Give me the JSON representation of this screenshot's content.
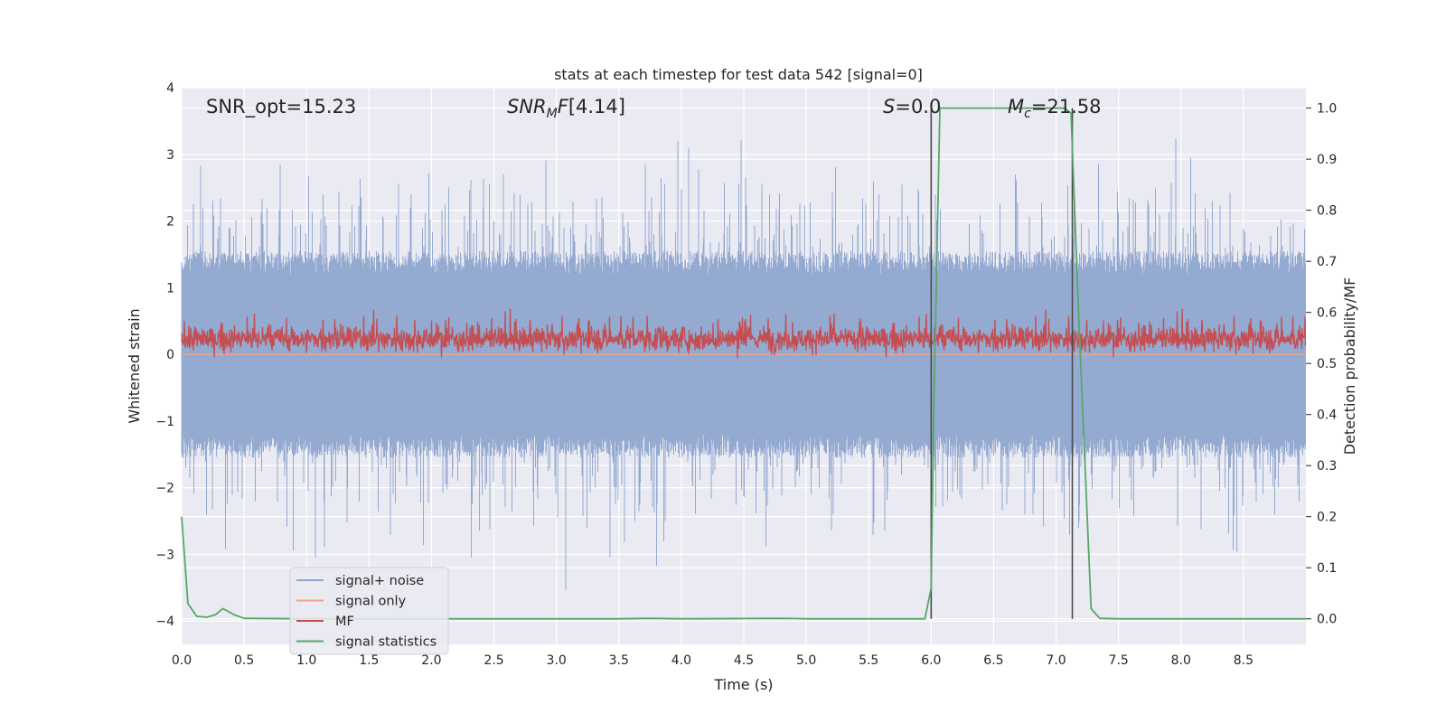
{
  "chart_data": {
    "type": "line",
    "title": "stats at each timestep for test data 542 [signal=0]",
    "xlabel": "Time (s)",
    "ylabel": "Whitened strain",
    "ylabel_right": "Detection probability/MF",
    "xlim": [
      0.0,
      9.0
    ],
    "ylim": [
      -4.35,
      4.0
    ],
    "ylim_right": [
      -0.05,
      1.04
    ],
    "x_ticks": [
      "0.0",
      "0.5",
      "1.0",
      "1.5",
      "2.0",
      "2.5",
      "3.0",
      "3.5",
      "4.0",
      "4.5",
      "5.0",
      "5.5",
      "6.0",
      "6.5",
      "7.0",
      "7.5",
      "8.0",
      "8.5"
    ],
    "y_ticks": [
      "4",
      "3",
      "2",
      "1",
      "0",
      "−1",
      "−2",
      "−3",
      "−4"
    ],
    "y_ticks_right": [
      "1.0",
      "0.9",
      "0.8",
      "0.7",
      "0.6",
      "0.5",
      "0.4",
      "0.3",
      "0.2",
      "0.1",
      "0.0"
    ],
    "grid": true,
    "legend_position": "lower-left",
    "annotations": {
      "snr_opt": "SNR_opt=15.23",
      "snr_mf": "[4.14]",
      "s": "=0.0",
      "mc": "=21.58"
    },
    "markers_x": [
      6.0,
      7.13
    ],
    "series": [
      {
        "name": "signal+ noise",
        "color": "#8fa6cf",
        "description": "whitened strain noise series, roughly ±1.5 with spikes reaching about ±3.6",
        "amplitude_range": [
          -3.85,
          3.6
        ]
      },
      {
        "name": "signal only",
        "color": "#eea58c",
        "y_constant": 0.0
      },
      {
        "name": "MF",
        "color": "#c44e52",
        "description": "matched filter output around 0.55 on the right axis, range about 0.5 to 0.61",
        "right_axis_range": [
          0.5,
          0.61
        ]
      },
      {
        "name": "signal statistics",
        "color": "#55a868",
        "axis": "right",
        "x": [
          0.0,
          0.05,
          0.12,
          0.2,
          0.27,
          0.33,
          0.37,
          0.42,
          0.5,
          1.0,
          2.0,
          3.0,
          3.5,
          3.75,
          4.0,
          4.8,
          5.0,
          5.95,
          6.0,
          6.02,
          6.07,
          6.5,
          7.0,
          7.07,
          7.12,
          7.18,
          7.28,
          7.35,
          7.5,
          8.0,
          9.0
        ],
        "y": [
          0.2,
          0.03,
          0.005,
          0.003,
          0.008,
          0.02,
          0.015,
          0.008,
          0.001,
          0.0,
          0.0,
          0.0,
          0.0,
          0.001,
          0.0,
          0.001,
          0.0,
          0.0,
          0.06,
          0.4,
          1.0,
          1.0,
          1.0,
          1.0,
          0.99,
          0.6,
          0.02,
          0.001,
          0.0,
          0.0,
          0.0
        ]
      }
    ]
  }
}
